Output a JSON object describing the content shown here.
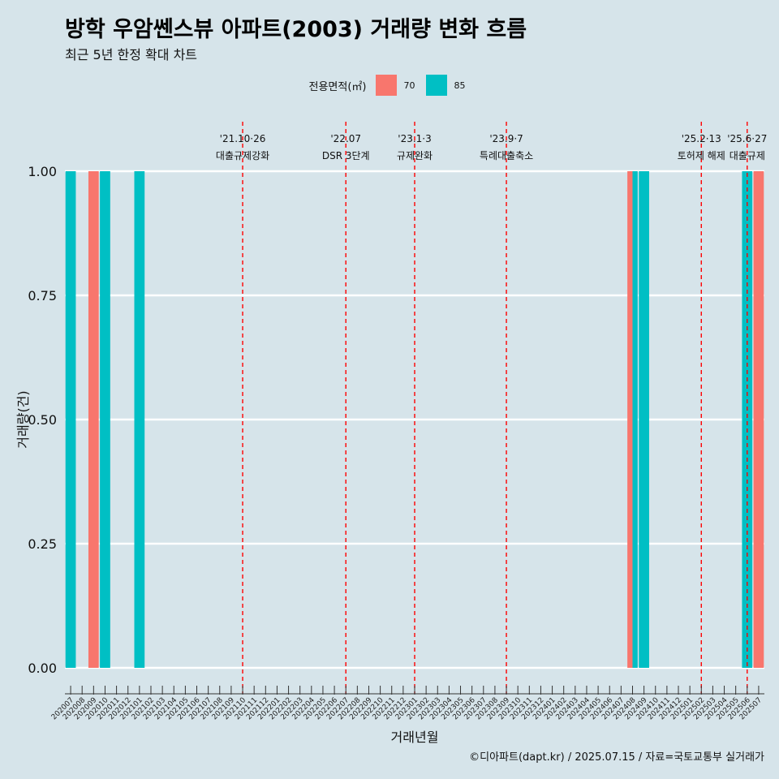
{
  "header": {
    "title": "방학 우암쎈스뷰 아파트(2003) 거래량 변화 흐름",
    "subtitle": "최근 5년 한정 확대 차트"
  },
  "legend": {
    "title": "전용면적(㎡)",
    "items": [
      {
        "label": "70",
        "color": "#f8766d"
      },
      {
        "label": "85",
        "color": "#00bfc4"
      }
    ]
  },
  "caption": "©디아파트(dapt.kr) / 2025.07.15 / 자료=국토교통부 실거래가",
  "chart_data": {
    "type": "bar",
    "xlabel": "거래년월",
    "ylabel": "거래량(건)",
    "ylim": [
      0,
      1
    ],
    "y_ticks": [
      "0.00",
      "0.25",
      "0.50",
      "0.75",
      "1.00"
    ],
    "grid": true,
    "legend_position": "top",
    "categories": [
      "202007",
      "202008",
      "202009",
      "202010",
      "202011",
      "202012",
      "202101",
      "202102",
      "202103",
      "202104",
      "202105",
      "202106",
      "202107",
      "202108",
      "202109",
      "202110",
      "202111",
      "202112",
      "202201",
      "202202",
      "202203",
      "202204",
      "202205",
      "202206",
      "202207",
      "202208",
      "202209",
      "202210",
      "202211",
      "202212",
      "202301",
      "202302",
      "202303",
      "202304",
      "202305",
      "202306",
      "202307",
      "202308",
      "202309",
      "202310",
      "202311",
      "202312",
      "202401",
      "202402",
      "202403",
      "202404",
      "202405",
      "202406",
      "202407",
      "202408",
      "202409",
      "202410",
      "202411",
      "202412",
      "202501",
      "202502",
      "202503",
      "202504",
      "202505",
      "202506",
      "202507"
    ],
    "bars": [
      {
        "category": "202007",
        "series": "85",
        "value": 1
      },
      {
        "category": "202009",
        "series": "70",
        "value": 1
      },
      {
        "category": "202010",
        "series": "85",
        "value": 1
      },
      {
        "category": "202101",
        "series": "85",
        "value": 1
      },
      {
        "category": "202408",
        "series": "70",
        "value": 1
      },
      {
        "category": "202408",
        "series": "85",
        "value": 1
      },
      {
        "category": "202409",
        "series": "85",
        "value": 1
      },
      {
        "category": "202506",
        "series": "85",
        "value": 1
      },
      {
        "category": "202507",
        "series": "70",
        "value": 1
      }
    ],
    "annotations": [
      {
        "category": "202110",
        "date": "'21.10·26",
        "label": "대출규제강화"
      },
      {
        "category": "202207",
        "date": "'22.07",
        "label": "DSR 3단계"
      },
      {
        "category": "202301",
        "date": "'23.1·3",
        "label": "규제완화"
      },
      {
        "category": "202309",
        "date": "'23.9·7",
        "label": "특례대출축소"
      },
      {
        "category": "202502",
        "date": "'25.2·13",
        "label": "토허제 해제"
      },
      {
        "category": "202506",
        "date": "'25.6·27",
        "label": "대출규제"
      }
    ]
  }
}
